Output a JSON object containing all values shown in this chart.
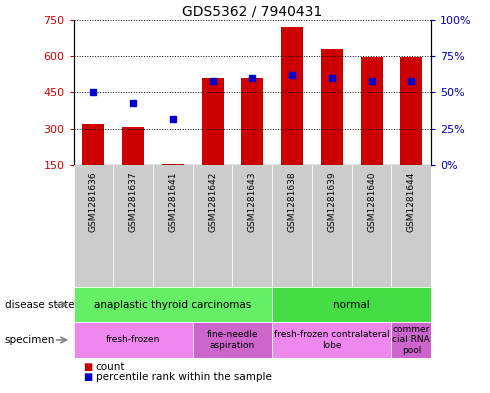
{
  "title": "GDS5362 / 7940431",
  "samples": [
    "GSM1281636",
    "GSM1281637",
    "GSM1281641",
    "GSM1281642",
    "GSM1281643",
    "GSM1281638",
    "GSM1281639",
    "GSM1281640",
    "GSM1281644"
  ],
  "counts": [
    320,
    305,
    155,
    510,
    510,
    720,
    630,
    595,
    595
  ],
  "percentile_ranks": [
    50,
    43,
    32,
    58,
    60,
    62,
    60,
    58,
    58
  ],
  "y_min": 150,
  "y_max": 750,
  "y_ticks": [
    150,
    300,
    450,
    600,
    750
  ],
  "y_right_ticks": [
    0,
    25,
    50,
    75,
    100
  ],
  "y_right_labels": [
    "0%",
    "25%",
    "50%",
    "75%",
    "100%"
  ],
  "bar_color": "#cc0000",
  "dot_color": "#0000cc",
  "disease_state_groups": [
    {
      "label": "anaplastic thyroid carcinomas",
      "start": 0,
      "end": 5,
      "color": "#66ee66"
    },
    {
      "label": "normal",
      "start": 5,
      "end": 9,
      "color": "#44dd44"
    }
  ],
  "specimen_groups": [
    {
      "label": "fresh-frozen",
      "start": 0,
      "end": 3,
      "color": "#ee88ee"
    },
    {
      "label": "fine-needle\naspiration",
      "start": 3,
      "end": 5,
      "color": "#cc66cc"
    },
    {
      "label": "fresh-frozen contralateral\nlobe",
      "start": 5,
      "end": 8,
      "color": "#ee88ee"
    },
    {
      "label": "commer\ncial RNA\npool",
      "start": 8,
      "end": 9,
      "color": "#cc66cc"
    }
  ],
  "legend_count_color": "#cc0000",
  "legend_pct_color": "#0000cc",
  "bg_color": "#ffffff",
  "grid_color": "#000000",
  "tick_color_left": "#cc0000",
  "tick_color_right": "#0000bb",
  "xlabel_bg": "#cccccc",
  "border_color": "#888888"
}
